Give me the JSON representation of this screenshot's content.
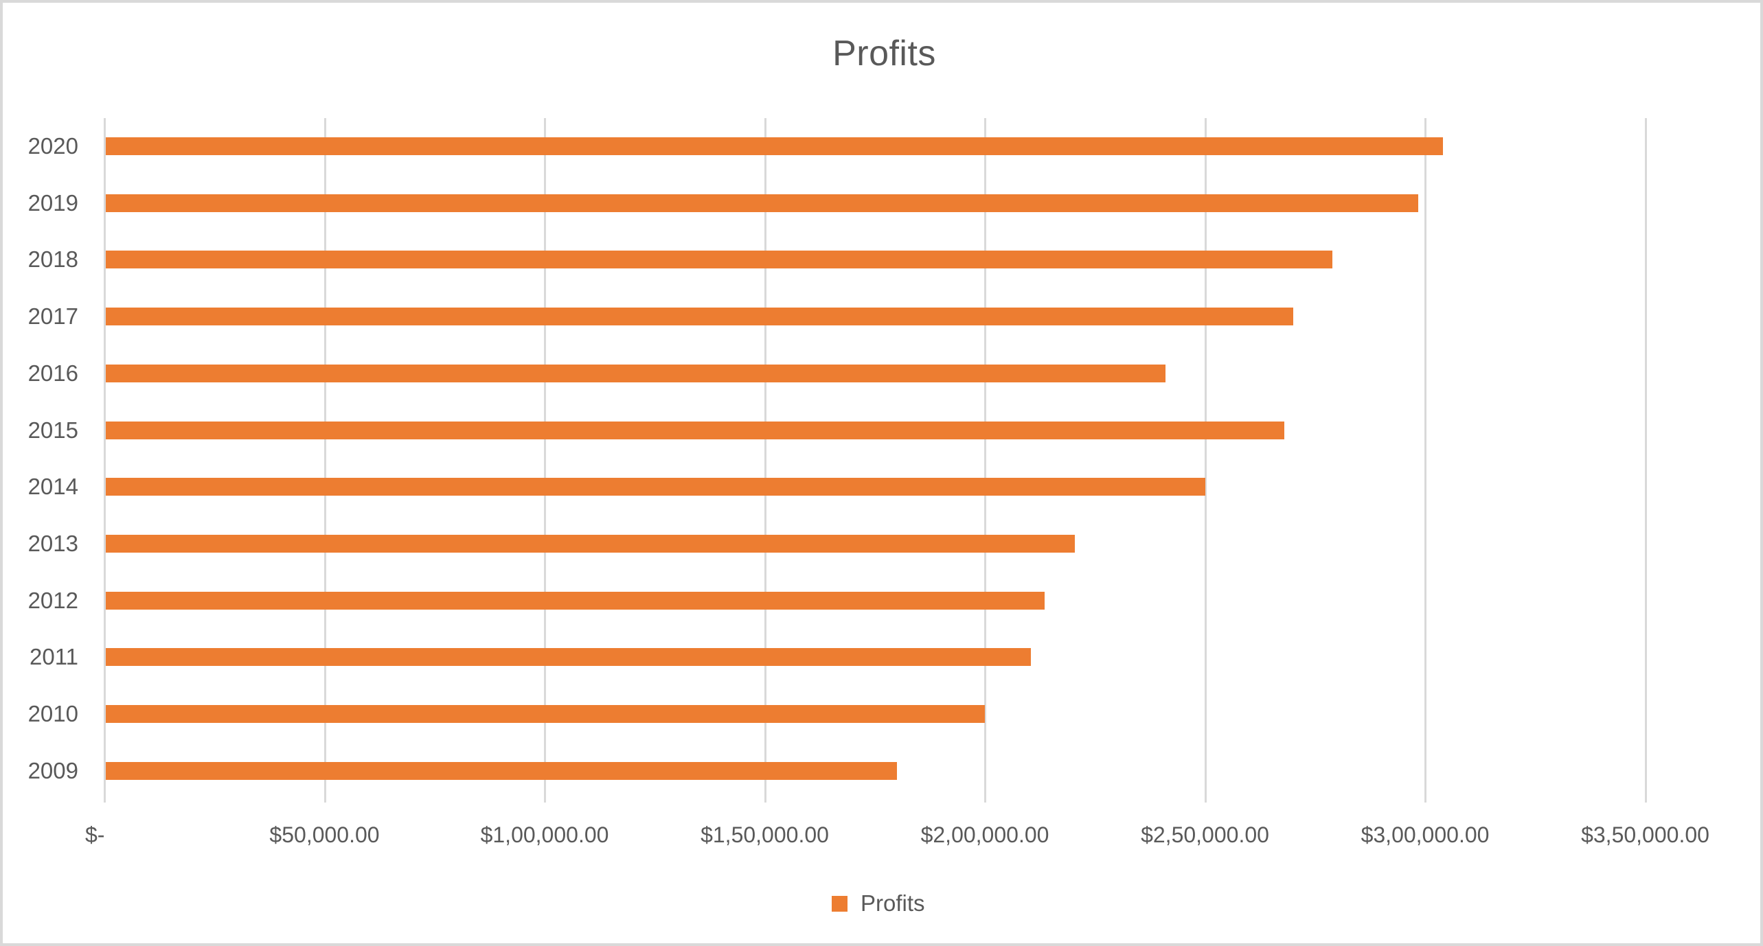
{
  "chart_data": {
    "type": "bar",
    "orientation": "horizontal",
    "title": "Profits",
    "xlabel": "",
    "ylabel": "",
    "categories": [
      "2020",
      "2019",
      "2018",
      "2017",
      "2016",
      "2015",
      "2014",
      "2013",
      "2012",
      "2011",
      "2010",
      "2009"
    ],
    "series": [
      {
        "name": "Profits",
        "color": "#ed7d31",
        "values": [
          304000,
          298500,
          279000,
          270000,
          241000,
          268000,
          250000,
          220500,
          213500,
          210500,
          200000,
          180000
        ]
      }
    ],
    "xlim": [
      0,
      350000
    ],
    "x_ticks": [
      0,
      50000,
      100000,
      150000,
      200000,
      250000,
      300000,
      350000
    ],
    "x_tick_labels": [
      "$-",
      "$50,000.00",
      "$1,00,000.00",
      "$1,50,000.00",
      "$2,00,000.00",
      "$2,50,000.00",
      "$3,00,000.00",
      "$3,50,000.00"
    ],
    "grid": "vertical",
    "legend": {
      "position": "bottom",
      "entries": [
        "Profits"
      ]
    }
  },
  "title": "Profits",
  "legend": {
    "label": "Profits"
  },
  "colors": {
    "bar": "#ed7d31",
    "text": "#595959",
    "grid": "#d9d9d9",
    "border": "#d9d9d9"
  }
}
